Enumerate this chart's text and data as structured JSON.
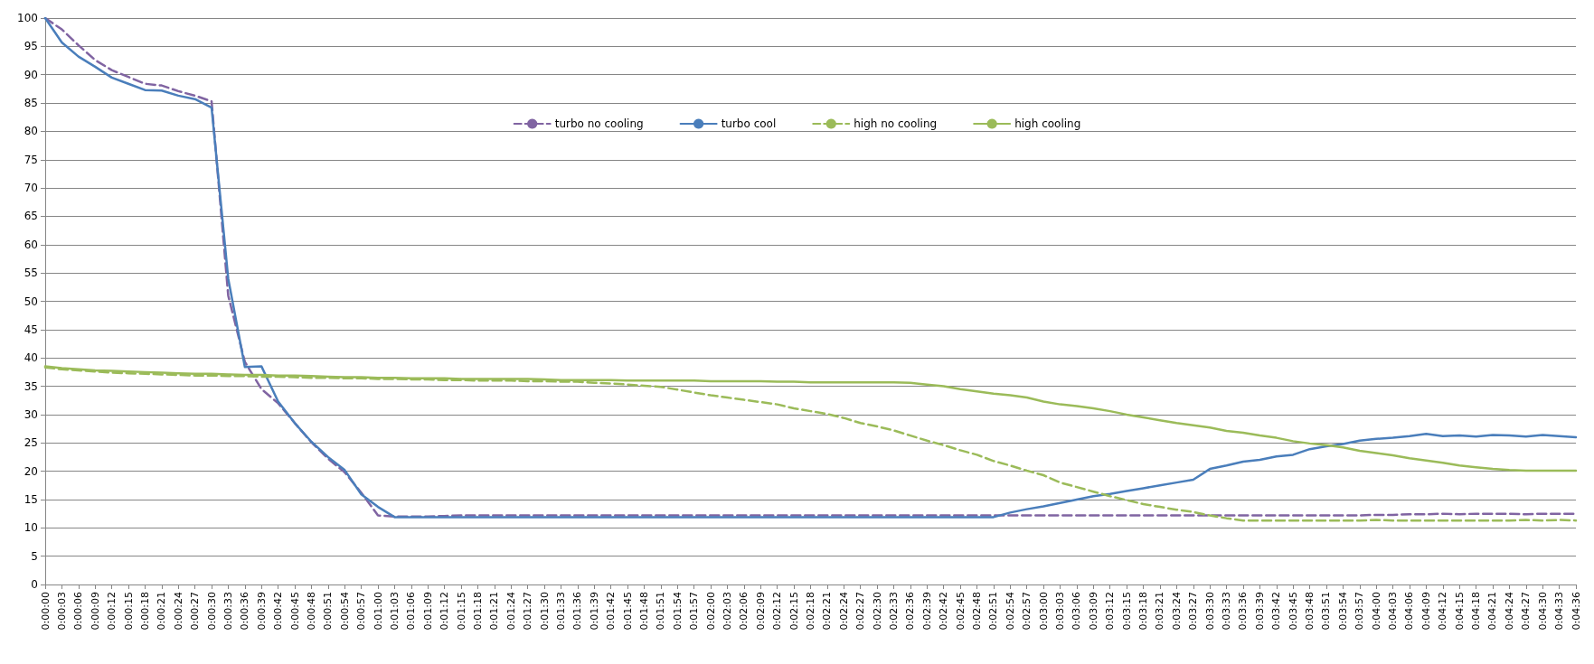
{
  "chart_data": {
    "type": "line",
    "categories": [
      "0:00:00",
      "0:00:03",
      "0:00:06",
      "0:00:09",
      "0:00:12",
      "0:00:15",
      "0:00:18",
      "0:00:21",
      "0:00:24",
      "0:00:27",
      "0:00:30",
      "0:00:33",
      "0:00:36",
      "0:00:39",
      "0:00:42",
      "0:00:45",
      "0:00:48",
      "0:00:51",
      "0:00:54",
      "0:00:57",
      "0:01:00",
      "0:01:03",
      "0:01:06",
      "0:01:09",
      "0:01:12",
      "0:01:15",
      "0:01:18",
      "0:01:21",
      "0:01:24",
      "0:01:27",
      "0:01:30",
      "0:01:33",
      "0:01:36",
      "0:01:39",
      "0:01:42",
      "0:01:45",
      "0:01:48",
      "0:01:51",
      "0:01:54",
      "0:01:57",
      "0:02:00",
      "0:02:03",
      "0:02:06",
      "0:02:09",
      "0:02:12",
      "0:02:15",
      "0:02:18",
      "0:02:21",
      "0:02:24",
      "0:02:27",
      "0:02:30",
      "0:02:33",
      "0:02:36",
      "0:02:39",
      "0:02:42",
      "0:02:45",
      "0:02:48",
      "0:02:51",
      "0:02:54",
      "0:02:57",
      "0:03:00",
      "0:03:03",
      "0:03:06",
      "0:03:09",
      "0:03:12",
      "0:03:15",
      "0:03:18",
      "0:03:21",
      "0:03:24",
      "0:03:27",
      "0:03:30",
      "0:03:33",
      "0:03:36",
      "0:03:39",
      "0:03:42",
      "0:03:45",
      "0:03:48",
      "0:03:51",
      "0:03:54",
      "0:03:57",
      "0:04:00",
      "0:04:03",
      "0:04:06",
      "0:04:09",
      "0:04:12",
      "0:04:15",
      "0:04:18",
      "0:04:21",
      "0:04:24",
      "0:04:27",
      "0:04:30",
      "0:04:33",
      "0:04:36"
    ],
    "series": [
      {
        "name": "turbo no cooling",
        "color": "#8064a2",
        "line_style": "dashed",
        "values": [
          100,
          98,
          95.2,
          92.6,
          90.8,
          89.6,
          88.4,
          88.1,
          87.1,
          86.3,
          85.3,
          51,
          39.3,
          34.5,
          32,
          28.5,
          25.1,
          22.2,
          19.8,
          16.2,
          12.2,
          12,
          12,
          12,
          12.1,
          12.2,
          12.2,
          12.2,
          12.2,
          12.2,
          12.2,
          12.2,
          12.2,
          12.2,
          12.2,
          12.2,
          12.2,
          12.2,
          12.2,
          12.2,
          12.2,
          12.2,
          12.2,
          12.2,
          12.2,
          12.2,
          12.2,
          12.2,
          12.2,
          12.2,
          12.2,
          12.2,
          12.2,
          12.2,
          12.2,
          12.2,
          12.2,
          12.2,
          12.2,
          12.2,
          12.2,
          12.2,
          12.2,
          12.2,
          12.2,
          12.2,
          12.2,
          12.2,
          12.2,
          12.2,
          12.2,
          12.2,
          12.2,
          12.2,
          12.2,
          12.2,
          12.2,
          12.2,
          12.2,
          12.2,
          12.3,
          12.3,
          12.4,
          12.4,
          12.5,
          12.4,
          12.5,
          12.5,
          12.5,
          12.4,
          12.5,
          12.5,
          12.5
        ]
      },
      {
        "name": "turbo cool",
        "color": "#4a7ebb",
        "line_style": "solid",
        "values": [
          100,
          95.7,
          93.2,
          91.4,
          89.5,
          88.4,
          87.3,
          87.2,
          86.3,
          85.7,
          84.2,
          54,
          38.4,
          38.5,
          32.3,
          28.5,
          25.2,
          22.5,
          20.2,
          15.9,
          13.7,
          11.9,
          11.9,
          11.9,
          11.9,
          11.9,
          11.9,
          11.9,
          11.9,
          11.9,
          11.9,
          11.9,
          11.9,
          11.9,
          11.9,
          11.9,
          11.9,
          11.9,
          11.9,
          11.9,
          11.9,
          11.9,
          11.9,
          11.9,
          11.9,
          11.9,
          11.9,
          11.9,
          11.9,
          11.9,
          11.9,
          11.9,
          11.9,
          11.9,
          11.9,
          11.9,
          11.9,
          11.9,
          12.7,
          13.3,
          13.8,
          14.4,
          15,
          15.6,
          16,
          16.5,
          17,
          17.5,
          18,
          18.5,
          20.4,
          21,
          21.7,
          22,
          22.6,
          22.9,
          23.9,
          24.4,
          24.8,
          25.4,
          25.7,
          25.9,
          26.2,
          26.6,
          26.2,
          26.3,
          26.1,
          26.4,
          26.3,
          26.1,
          26.4,
          26.2,
          26
        ]
      },
      {
        "name": "high no cooling",
        "color": "#9bbb59",
        "line_style": "dashed",
        "values": [
          38.3,
          38,
          37.8,
          37.6,
          37.4,
          37.3,
          37.2,
          37.1,
          37,
          36.9,
          36.9,
          36.8,
          36.8,
          36.7,
          36.7,
          36.6,
          36.5,
          36.5,
          36.4,
          36.4,
          36.3,
          36.3,
          36.2,
          36.2,
          36.1,
          36.1,
          36,
          36,
          36,
          35.9,
          35.9,
          35.8,
          35.8,
          35.6,
          35.5,
          35.3,
          35.1,
          34.9,
          34.4,
          33.9,
          33.4,
          33,
          32.6,
          32.2,
          31.8,
          31.1,
          30.6,
          30.1,
          29.4,
          28.5,
          27.9,
          27.2,
          26.3,
          25.4,
          24.6,
          23.7,
          22.9,
          21.8,
          21,
          20.1,
          19.3,
          18,
          17.2,
          16.4,
          15.6,
          14.9,
          14.2,
          13.7,
          13.2,
          12.8,
          12.2,
          11.7,
          11.3,
          11.3,
          11.3,
          11.3,
          11.3,
          11.3,
          11.3,
          11.3,
          11.4,
          11.3,
          11.3,
          11.3,
          11.3,
          11.3,
          11.3,
          11.3,
          11.3,
          11.4,
          11.3,
          11.4,
          11.3
        ]
      },
      {
        "name": "high cooling",
        "color": "#9bbb59",
        "line_style": "solid",
        "values": [
          38.5,
          38.2,
          38,
          37.8,
          37.7,
          37.6,
          37.5,
          37.4,
          37.3,
          37.2,
          37.2,
          37.1,
          37,
          37,
          36.9,
          36.9,
          36.8,
          36.7,
          36.6,
          36.6,
          36.5,
          36.5,
          36.4,
          36.4,
          36.4,
          36.3,
          36.3,
          36.3,
          36.3,
          36.3,
          36.2,
          36.1,
          36.1,
          36.1,
          36.1,
          36,
          36,
          36,
          36,
          36,
          35.9,
          35.9,
          35.9,
          35.9,
          35.8,
          35.8,
          35.7,
          35.7,
          35.7,
          35.7,
          35.7,
          35.7,
          35.6,
          35.3,
          35,
          34.5,
          34.1,
          33.7,
          33.4,
          33,
          32.3,
          31.8,
          31.5,
          31.1,
          30.6,
          30,
          29.5,
          29,
          28.5,
          28.1,
          27.7,
          27.1,
          26.8,
          26.3,
          25.9,
          25.3,
          24.9,
          24.6,
          24.2,
          23.6,
          23.2,
          22.8,
          22.3,
          21.9,
          21.5,
          21,
          20.7,
          20.4,
          20.2,
          20.1,
          20.1,
          20.1,
          20.1
        ]
      }
    ],
    "ylim": [
      0,
      100
    ],
    "yticks": [
      0,
      5,
      10,
      15,
      20,
      25,
      30,
      35,
      40,
      45,
      50,
      55,
      60,
      65,
      70,
      75,
      80,
      85,
      90,
      95,
      100
    ],
    "grid": "y",
    "legend": "top",
    "marker": "none"
  }
}
